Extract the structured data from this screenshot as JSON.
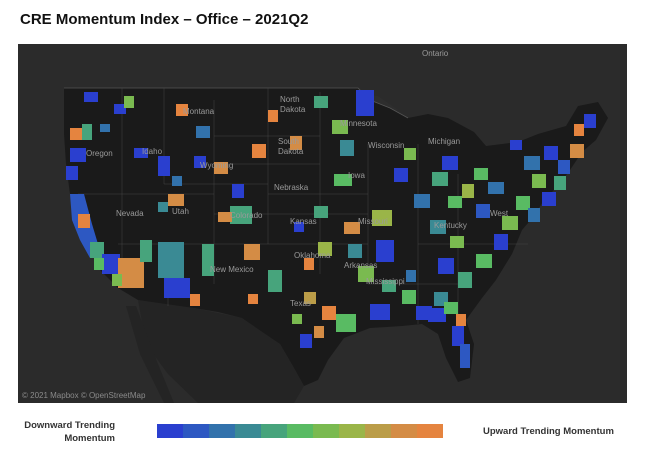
{
  "title": "CRE Momentum Index – Office – 2021Q2",
  "map": {
    "labels": {
      "ontario": "Ontario",
      "montana": "Montana",
      "north_dakota_1": "North",
      "north_dakota_2": "Dakota",
      "south_dakota_1": "South",
      "south_dakota_2": "Dakota",
      "minnesota": "Minnesota",
      "wisconsin": "Wisconsin",
      "michigan": "Michigan",
      "oregon": "Oregon",
      "idaho": "Idaho",
      "wyoming": "Wyoming",
      "nebraska": "Nebraska",
      "iowa": "Iowa",
      "nevada": "Nevada",
      "utah": "Utah",
      "colorado": "Colorado",
      "kansas": "Kansas",
      "missouri": "Missouri",
      "kentucky": "Kentucky",
      "west_virginia": "West",
      "new_mexico": "New Mexico",
      "oklahoma": "Oklahoma",
      "arkansas": "Arkansas",
      "mississippi": "Mississippi",
      "texas": "Texas"
    },
    "attribution": "© 2021 Mapbox © OpenStreetMap",
    "colors": {
      "background": "#2b2b2b",
      "land": "#1a1a1a",
      "water": "#2e2e2e",
      "borders": "#555555"
    }
  },
  "legend": {
    "low_label": "Downward Trending Momentum",
    "high_label": "Upward Trending Momentum",
    "scale_colors": [
      "#2a3fcf",
      "#2d58c2",
      "#3272ac",
      "#3a8a94",
      "#47a47c",
      "#59bb63",
      "#7aba50",
      "#9ab548",
      "#bb9d48",
      "#d48c45",
      "#e5843f"
    ]
  }
}
